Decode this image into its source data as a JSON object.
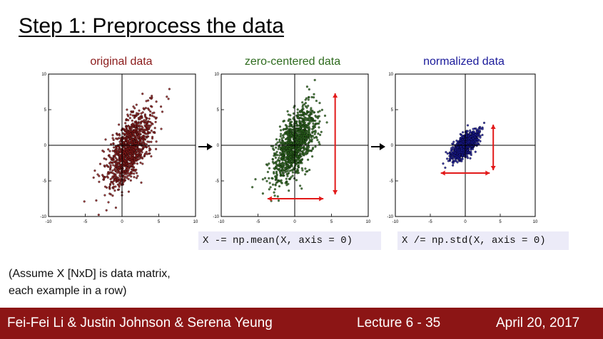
{
  "slide": {
    "title": "Step 1: Preprocess the data",
    "note_line1": "(Assume X [NxD] is data matrix,",
    "note_line2": "each example in a row)"
  },
  "panels": [
    {
      "title": "original data",
      "color": "#8b1a1a"
    },
    {
      "title": "zero-centered data",
      "color": "#2e6b1e"
    },
    {
      "title": "normalized data",
      "color": "#1a1a9a"
    }
  ],
  "code": {
    "line1": "X -= np.mean(X, axis = 0)",
    "line2": "X /= np.std(X, axis = 0)"
  },
  "footer": {
    "authors": "Fei-Fei Li & Justin Johnson & Serena Yeung",
    "lecture": "Lecture 6 - 35",
    "date": "April 20, 2017",
    "background": "#8c1515"
  },
  "chart_data": [
    {
      "type": "scatter",
      "title": "original data",
      "xlim": [
        -10,
        10
      ],
      "ylim": [
        -10,
        10
      ],
      "xticks": [
        -10,
        -5,
        0,
        5,
        10
      ],
      "yticks": [
        -10,
        -5,
        0,
        5,
        10
      ],
      "color": "#8b1a1a",
      "center": [
        1.0,
        -0.5
      ],
      "spread": [
        1.1,
        2.9
      ],
      "angle_deg": 68,
      "grid": false,
      "axes_through_origin": true
    },
    {
      "type": "scatter",
      "title": "zero-centered data",
      "xlim": [
        -10,
        10
      ],
      "ylim": [
        -10,
        10
      ],
      "xticks": [
        -10,
        -5,
        0,
        5,
        10
      ],
      "yticks": [
        -10,
        -5,
        0,
        5,
        10
      ],
      "color": "#2e6b1e",
      "center": [
        0,
        0
      ],
      "spread": [
        1.1,
        2.9
      ],
      "angle_deg": 68,
      "grid": false,
      "axes_through_origin": true,
      "annotation": "red double arrows showing x-range and y-range"
    },
    {
      "type": "scatter",
      "title": "normalized data",
      "xlim": [
        -10,
        10
      ],
      "ylim": [
        -10,
        10
      ],
      "xticks": [
        -10,
        -5,
        0,
        5,
        10
      ],
      "yticks": [
        -10,
        -5,
        0,
        5,
        10
      ],
      "color": "#1a1a9a",
      "center": [
        0,
        0
      ],
      "spread": [
        0.55,
        1.2
      ],
      "angle_deg": 45,
      "grid": false,
      "axes_through_origin": true,
      "annotation": "red double arrows showing x-range and y-range"
    }
  ]
}
